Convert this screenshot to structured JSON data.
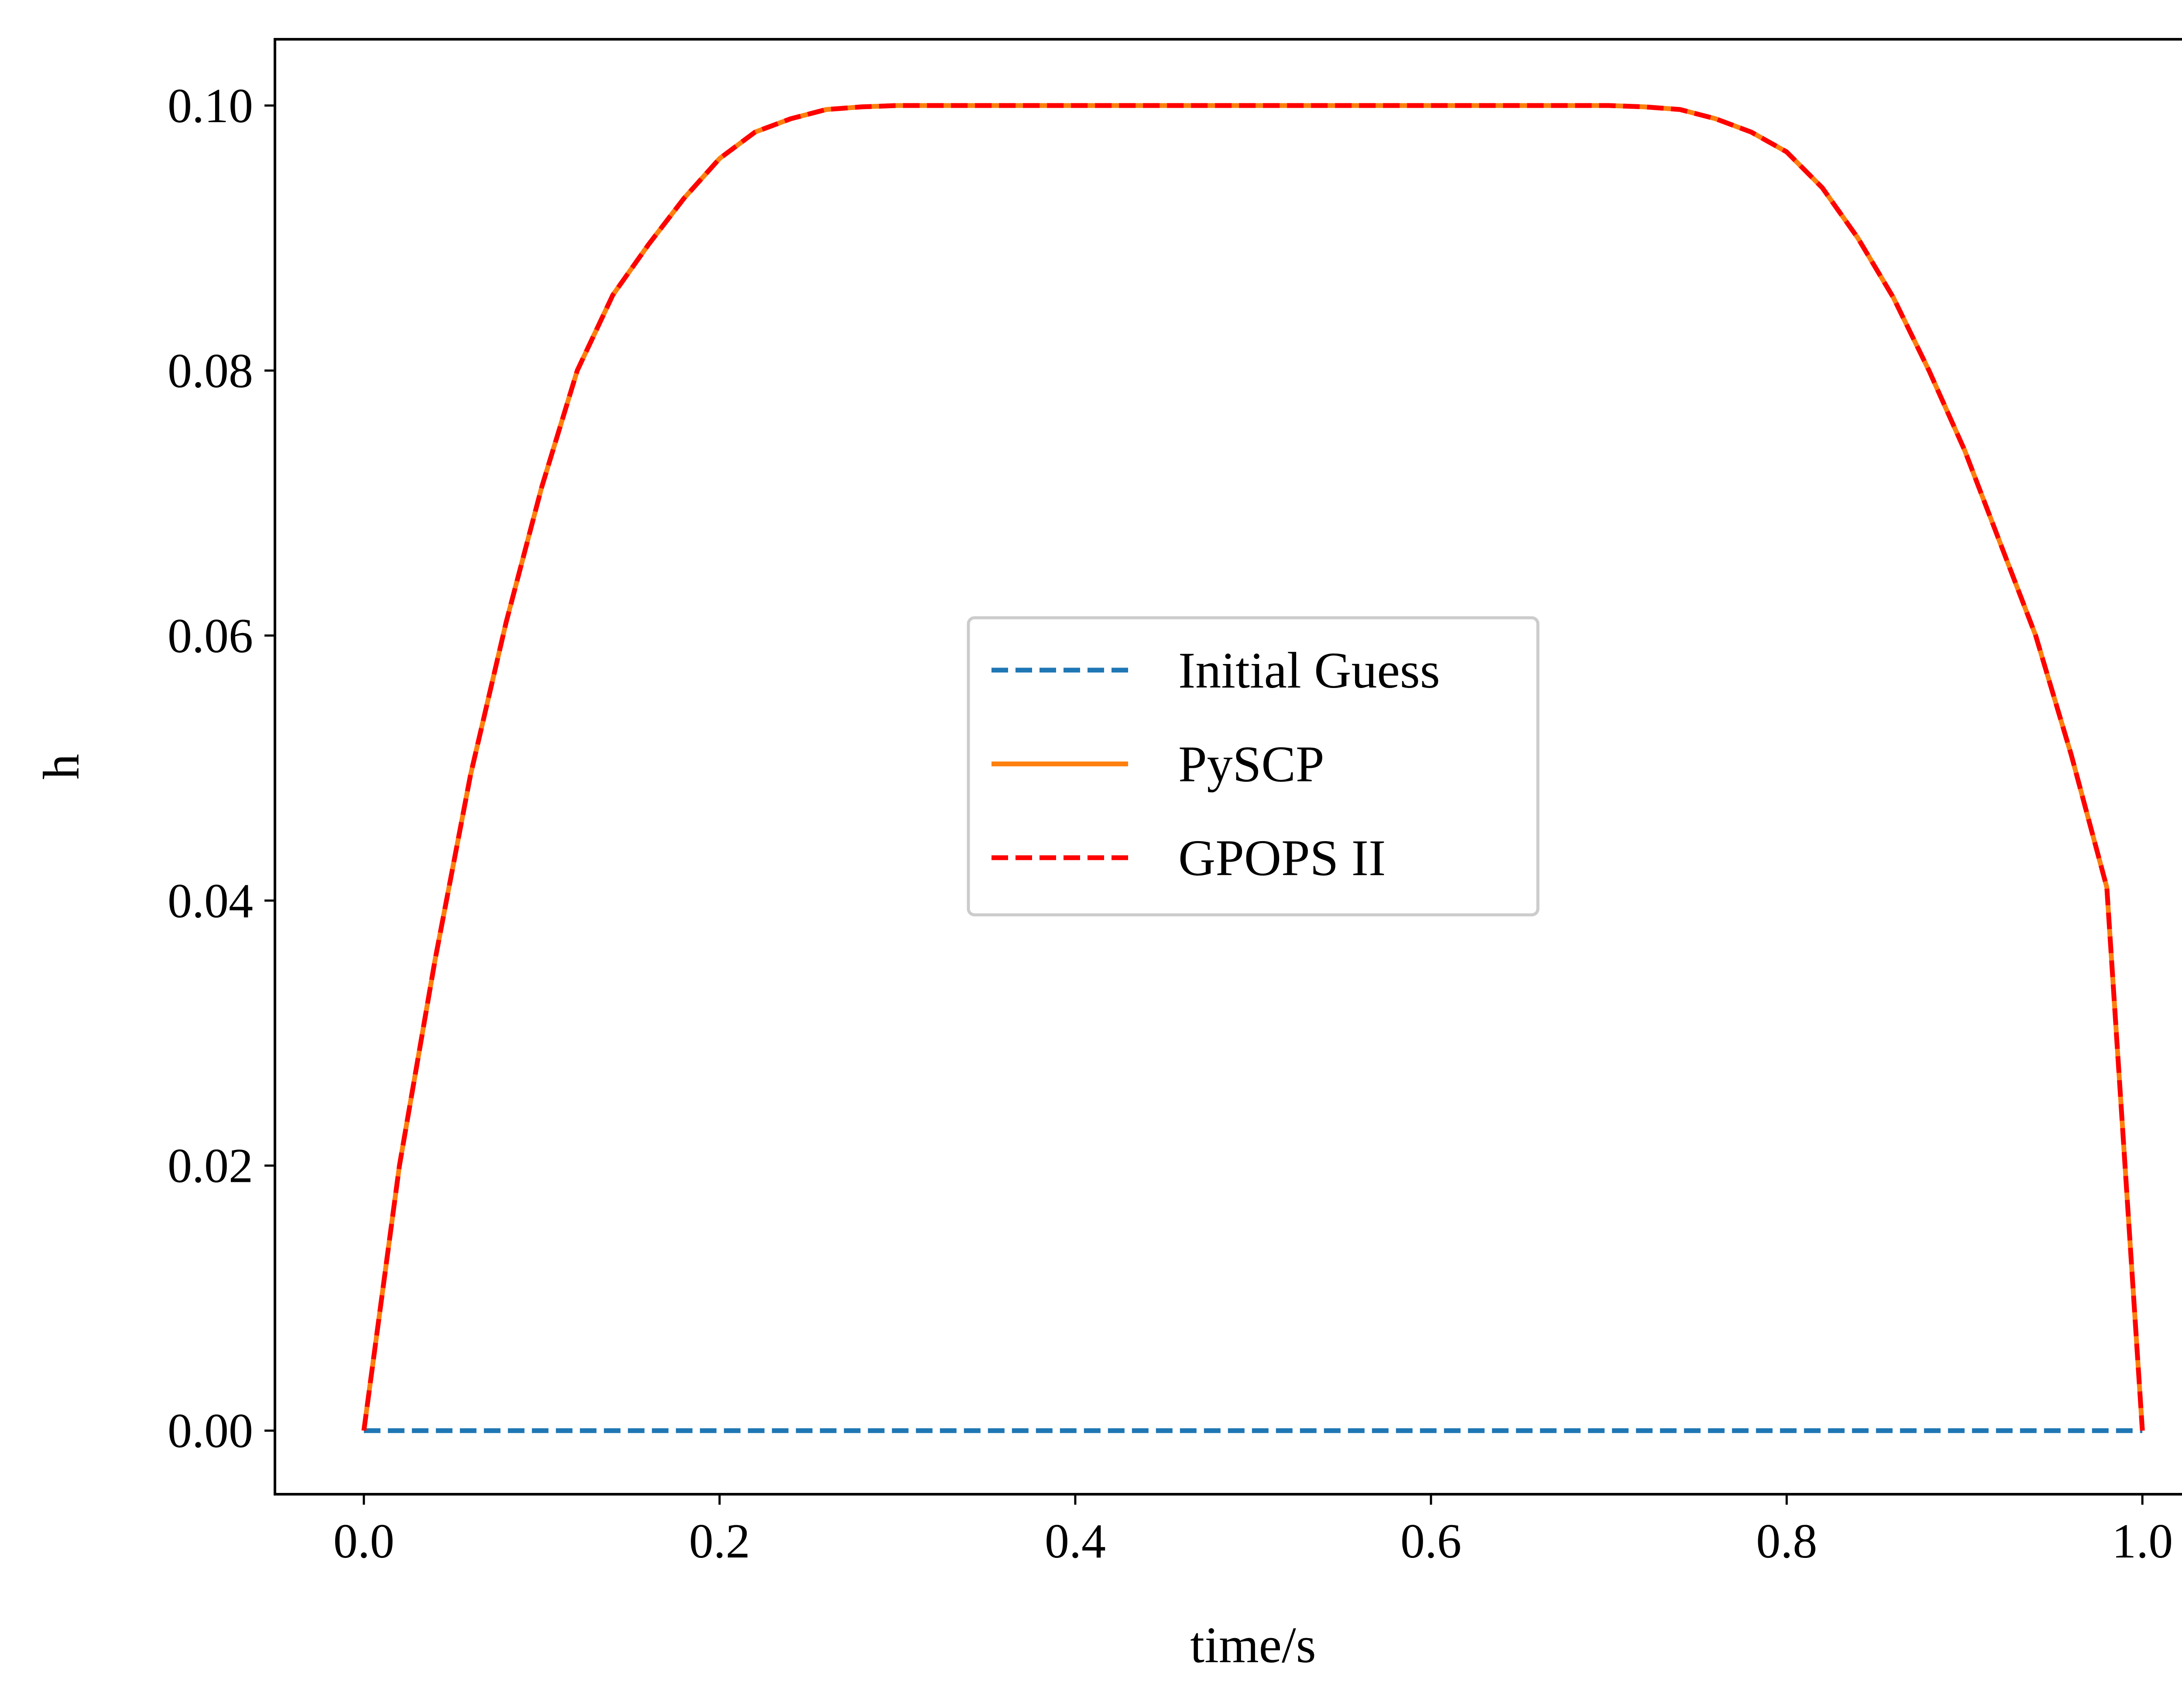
{
  "chart_data": {
    "type": "line",
    "title": "",
    "xlabel": "time/s",
    "ylabel": "h",
    "xlim": [
      -0.05,
      1.05
    ],
    "ylim": [
      -0.0048,
      0.105
    ],
    "xticks": [
      0.0,
      0.2,
      0.4,
      0.6,
      0.8,
      1.0
    ],
    "xtick_labels": [
      "0.0",
      "0.2",
      "0.4",
      "0.6",
      "0.8",
      "1.0"
    ],
    "yticks": [
      0.0,
      0.02,
      0.04,
      0.06,
      0.08,
      0.1
    ],
    "ytick_labels": [
      "0.00",
      "0.02",
      "0.04",
      "0.06",
      "0.08",
      "0.10"
    ],
    "grid": false,
    "legend_position": "center",
    "series": [
      {
        "name": "Initial Guess",
        "color": "#1f77b4",
        "style": "dashed",
        "x": [
          0.0,
          1.0
        ],
        "y": [
          0.0,
          0.0
        ]
      },
      {
        "name": "PySCP",
        "color": "#ff7f0e",
        "style": "solid",
        "x": [
          0.0,
          0.02,
          0.04,
          0.06,
          0.08,
          0.1,
          0.12,
          0.14,
          0.16,
          0.18,
          0.2,
          0.22,
          0.24,
          0.26,
          0.28,
          0.3,
          0.35,
          0.4,
          0.45,
          0.5,
          0.55,
          0.6,
          0.65,
          0.7,
          0.72,
          0.74,
          0.76,
          0.78,
          0.8,
          0.82,
          0.84,
          0.86,
          0.88,
          0.9,
          0.92,
          0.94,
          0.96,
          0.98,
          1.0
        ],
        "y": [
          0.0,
          0.02,
          0.0355,
          0.0495,
          0.061,
          0.0712,
          0.08,
          0.0857,
          0.0895,
          0.093,
          0.096,
          0.098,
          0.099,
          0.0997,
          0.0999,
          0.1,
          0.1,
          0.1,
          0.1,
          0.1,
          0.1,
          0.1,
          0.1,
          0.1,
          0.0999,
          0.0997,
          0.099,
          0.098,
          0.0965,
          0.0938,
          0.09,
          0.0855,
          0.08,
          0.074,
          0.067,
          0.06,
          0.051,
          0.041,
          0.0
        ]
      },
      {
        "name": "GPOPS II",
        "color": "#ff0000",
        "style": "dashed",
        "x": [
          0.0,
          0.02,
          0.04,
          0.06,
          0.08,
          0.1,
          0.12,
          0.14,
          0.16,
          0.18,
          0.2,
          0.22,
          0.24,
          0.26,
          0.28,
          0.3,
          0.35,
          0.4,
          0.45,
          0.5,
          0.55,
          0.6,
          0.65,
          0.7,
          0.72,
          0.74,
          0.76,
          0.78,
          0.8,
          0.82,
          0.84,
          0.86,
          0.88,
          0.9,
          0.92,
          0.94,
          0.96,
          0.98,
          1.0
        ],
        "y": [
          0.0,
          0.02,
          0.0355,
          0.0495,
          0.061,
          0.0712,
          0.08,
          0.0857,
          0.0895,
          0.093,
          0.096,
          0.098,
          0.099,
          0.0997,
          0.0999,
          0.1,
          0.1,
          0.1,
          0.1,
          0.1,
          0.1,
          0.1,
          0.1,
          0.1,
          0.0999,
          0.0997,
          0.099,
          0.098,
          0.0965,
          0.0938,
          0.09,
          0.0855,
          0.08,
          0.074,
          0.067,
          0.06,
          0.051,
          0.041,
          0.0
        ]
      }
    ]
  }
}
